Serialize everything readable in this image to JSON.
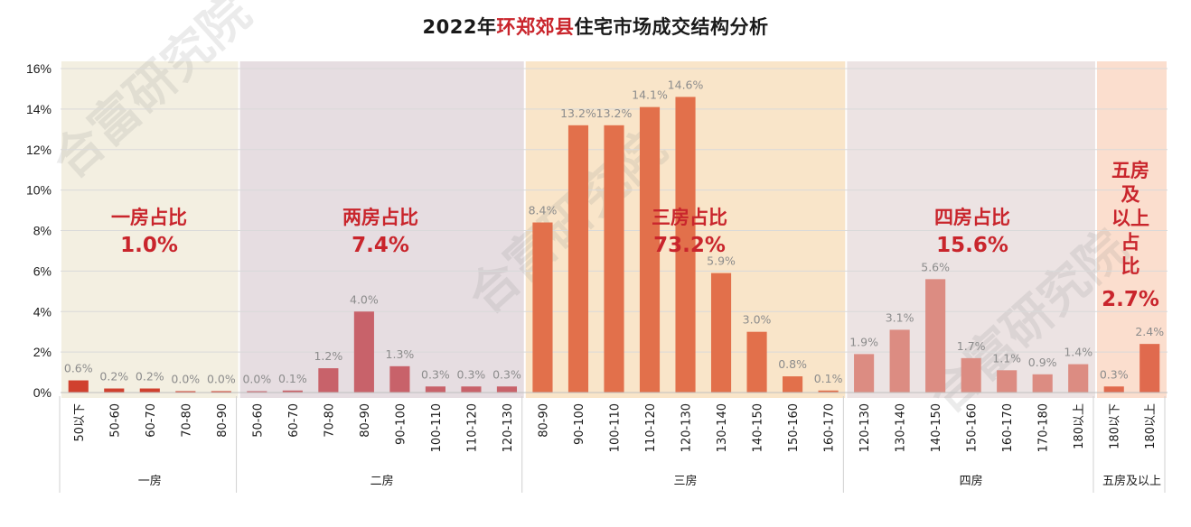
{
  "title": {
    "prefix": "2022年",
    "highlight": "环郑郊县",
    "suffix": "住宅市场成交结构分析"
  },
  "watermark": "合富研究院",
  "colors": {
    "title_highlight": "#c9252c",
    "share_text": "#c9252c"
  },
  "chart_data": {
    "type": "bar",
    "title": "2022年环郑郊县住宅市场成交结构分析",
    "ylabel": "",
    "ylim": [
      0,
      16
    ],
    "yticks": [
      "0%",
      "2%",
      "4%",
      "6%",
      "8%",
      "10%",
      "12%",
      "14%",
      "16%"
    ],
    "grid": true,
    "groups": [
      {
        "name": "一房",
        "share_title": "一房占比",
        "share_value": "1.0%",
        "band_color": "#f2eedf",
        "bar_color": "#d0412f",
        "bars": [
          {
            "category": "50以下",
            "value": 0.6,
            "label": "0.6%"
          },
          {
            "category": "50-60",
            "value": 0.2,
            "label": "0.2%"
          },
          {
            "category": "60-70",
            "value": 0.2,
            "label": "0.2%"
          },
          {
            "category": "70-80",
            "value": 0.0,
            "label": "0.0%"
          },
          {
            "category": "80-90",
            "value": 0.0,
            "label": "0.0%"
          }
        ]
      },
      {
        "name": "二房",
        "share_title": "两房占比",
        "share_value": "7.4%",
        "band_color": "#e5dbdf",
        "bar_color": "#c8626a",
        "bars": [
          {
            "category": "50-60",
            "value": 0.0,
            "label": "0.0%"
          },
          {
            "category": "60-70",
            "value": 0.1,
            "label": "0.1%"
          },
          {
            "category": "70-80",
            "value": 1.2,
            "label": "1.2%"
          },
          {
            "category": "80-90",
            "value": 4.0,
            "label": "4.0%"
          },
          {
            "category": "90-100",
            "value": 1.3,
            "label": "1.3%"
          },
          {
            "category": "100-110",
            "value": 0.3,
            "label": "0.3%"
          },
          {
            "category": "110-120",
            "value": 0.3,
            "label": "0.3%"
          },
          {
            "category": "120-130",
            "value": 0.3,
            "label": "0.3%"
          }
        ]
      },
      {
        "name": "三房",
        "share_title": "三房占比",
        "share_value": "73.2%",
        "band_color": "#f9e4c6",
        "bar_color": "#e2704b",
        "bars": [
          {
            "category": "80-90",
            "value": 8.4,
            "label": "8.4%"
          },
          {
            "category": "90-100",
            "value": 13.2,
            "label": "13.2%"
          },
          {
            "category": "100-110",
            "value": 13.2,
            "label": "13.2%"
          },
          {
            "category": "110-120",
            "value": 14.1,
            "label": "14.1%"
          },
          {
            "category": "120-130",
            "value": 14.6,
            "label": "14.6%"
          },
          {
            "category": "130-140",
            "value": 5.9,
            "label": "5.9%"
          },
          {
            "category": "140-150",
            "value": 3.0,
            "label": "3.0%"
          },
          {
            "category": "150-160",
            "value": 0.8,
            "label": "0.8%"
          },
          {
            "category": "160-170",
            "value": 0.1,
            "label": "0.1%"
          }
        ]
      },
      {
        "name": "四房",
        "share_title": "四房占比",
        "share_value": "15.6%",
        "band_color": "#ebe2e2",
        "bar_color": "#dc8c82",
        "bars": [
          {
            "category": "120-130",
            "value": 1.9,
            "label": "1.9%"
          },
          {
            "category": "130-140",
            "value": 3.1,
            "label": "3.1%"
          },
          {
            "category": "140-150",
            "value": 5.6,
            "label": "5.6%"
          },
          {
            "category": "150-160",
            "value": 1.7,
            "label": "1.7%"
          },
          {
            "category": "160-170",
            "value": 1.1,
            "label": "1.1%"
          },
          {
            "category": "170-180",
            "value": 0.9,
            "label": "0.9%"
          },
          {
            "category": "180以上",
            "value": 1.4,
            "label": "1.4%"
          }
        ]
      },
      {
        "name": "五房及以上",
        "share_title": "五房及以上占比",
        "share_title_lines": [
          "五房",
          "及",
          "以上",
          "占",
          "比"
        ],
        "share_value": "2.7%",
        "band_color": "#fbdccb",
        "bar_color": "#e06a4e",
        "bars": [
          {
            "category": "180以下",
            "value": 0.3,
            "label": "0.3%"
          },
          {
            "category": "180以上",
            "value": 2.4,
            "label": "2.4%"
          }
        ]
      }
    ]
  }
}
